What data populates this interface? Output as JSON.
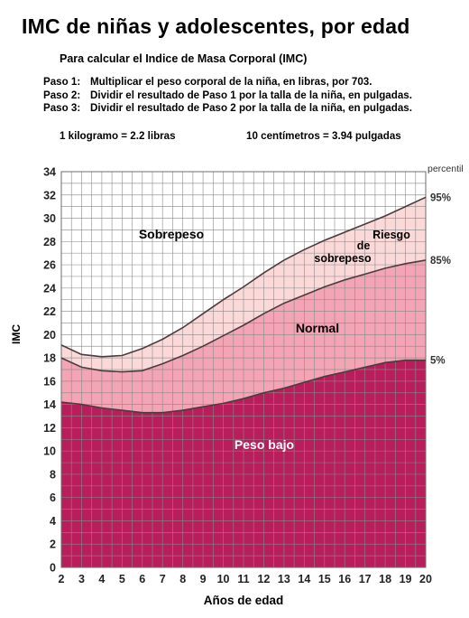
{
  "title": "IMC de niñas y adolescentes, por edad",
  "subtitle": "Para calcular el Indice de Masa Corporal (IMC)",
  "steps": [
    {
      "label": "Paso 1:",
      "text": "Multiplicar el peso corporal de la niña, en libras, por 703."
    },
    {
      "label": "Paso 2:",
      "text": "Dividir el resultado de Paso 1 por la talla de la niña, en pulgadas."
    },
    {
      "label": "Paso 3:",
      "text": "Dividir el resultado de Paso 2 por la talla de la niña, en pulgadas."
    }
  ],
  "conversions": {
    "weight": "1 kilogramo  =  2.2 libras",
    "length": "10 centímetros  =  3.94 pulgadas"
  },
  "chart_data": {
    "type": "area",
    "xlabel": "Años de edad",
    "ylabel": "IMC",
    "xlim": [
      2,
      20
    ],
    "ylim": [
      0,
      34
    ],
    "x_ticks": [
      "2",
      "3",
      "4",
      "5",
      "6",
      "7",
      "8",
      "9",
      "10",
      "11",
      "12",
      "13",
      "14",
      "15",
      "16",
      "17",
      "18",
      "19",
      "20"
    ],
    "y_ticks": [
      "0",
      "2",
      "4",
      "6",
      "8",
      "10",
      "12",
      "14",
      "16",
      "18",
      "20",
      "22",
      "24",
      "26",
      "28",
      "30",
      "32",
      "34"
    ],
    "grid": true,
    "percentile_header": "percentil",
    "x": [
      2,
      3,
      4,
      5,
      6,
      7,
      8,
      9,
      10,
      11,
      12,
      13,
      14,
      15,
      16,
      17,
      18,
      19,
      20
    ],
    "series": [
      {
        "name": "5%",
        "values": [
          14.2,
          14.0,
          13.7,
          13.5,
          13.3,
          13.3,
          13.5,
          13.8,
          14.1,
          14.5,
          15.0,
          15.4,
          15.9,
          16.4,
          16.8,
          17.2,
          17.6,
          17.8,
          17.8
        ]
      },
      {
        "name": "85%",
        "values": [
          18.0,
          17.2,
          16.9,
          16.8,
          16.9,
          17.5,
          18.2,
          19.0,
          19.9,
          20.8,
          21.8,
          22.7,
          23.4,
          24.1,
          24.7,
          25.2,
          25.7,
          26.1,
          26.4
        ]
      },
      {
        "name": "95%",
        "values": [
          19.1,
          18.3,
          18.1,
          18.2,
          18.8,
          19.6,
          20.6,
          21.8,
          23.0,
          24.1,
          25.3,
          26.4,
          27.3,
          28.1,
          28.8,
          29.5,
          30.2,
          31.0,
          31.8
        ]
      }
    ],
    "zones": [
      {
        "label": "Peso bajo",
        "color": "#b81e5c"
      },
      {
        "label": "Normal",
        "color": "#f4a5b5"
      },
      {
        "label": "Riesgo de sobrepeso",
        "label_lines": [
          "Riesgo",
          "de",
          "sobrepeso"
        ],
        "color": "#fbd9d9"
      },
      {
        "label": "Sobrepeso",
        "color": "#ffffff"
      }
    ],
    "colors": {
      "grid": "#8a8a8a",
      "curve": "#4e3b3d",
      "axis_text": "#222222"
    }
  }
}
